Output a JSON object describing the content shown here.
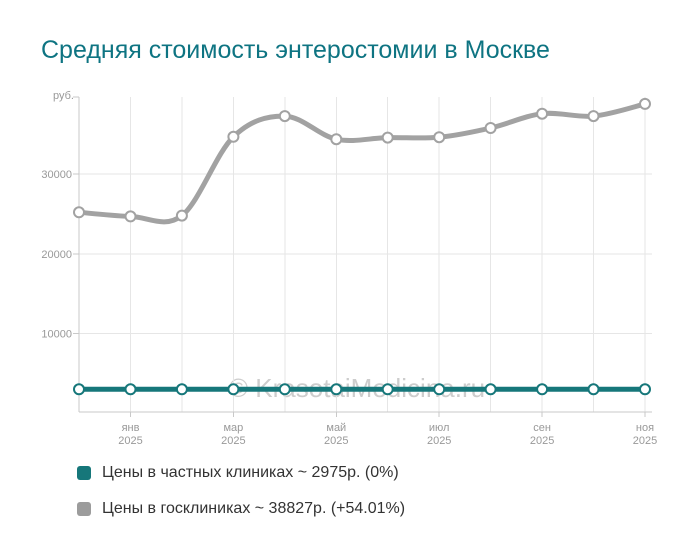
{
  "title": "Средняя стоимость энтеростомии в Москве",
  "watermark": "© KrasotaiMedicina.ru",
  "colors": {
    "title": "#0e7482",
    "private_series": "#16777a",
    "state_series": "#a2a2a2",
    "axis_line": "#c9c9c9",
    "grid_line": "#e6e6e6",
    "axis_label": "#999999",
    "legend_text": "#333333",
    "watermark_text": "#cdcdcd",
    "marker_fill": "#ffffff"
  },
  "chart_data": {
    "type": "line",
    "curve": "spline",
    "n_points": 12,
    "grid": true,
    "legend_position": "bottom-left",
    "y_axis": {
      "unit_label": "руб.",
      "min": 0,
      "max": 39700,
      "tick_values": [
        10000,
        20000,
        30000
      ],
      "tick_labels": [
        "10000",
        "20000",
        "30000"
      ]
    },
    "x_axis": {
      "tick_labels": [
        {
          "point_index": 1,
          "month": "янв",
          "year": "2025"
        },
        {
          "point_index": 3,
          "month": "мар",
          "year": "2025"
        },
        {
          "point_index": 5,
          "month": "май",
          "year": "2025"
        },
        {
          "point_index": 7,
          "month": "июл",
          "year": "2025"
        },
        {
          "point_index": 9,
          "month": "сен",
          "year": "2025"
        },
        {
          "point_index": 11,
          "month": "ноя",
          "year": "2025"
        }
      ]
    },
    "series": [
      {
        "name": "Цены в частных клиниках",
        "slug": "private-clinics",
        "color": "#16777a",
        "values": [
          2975,
          2975,
          2975,
          2975,
          2975,
          2975,
          2975,
          2975,
          2975,
          2975,
          2975,
          2975
        ]
      },
      {
        "name": "Цены в госклиниках",
        "slug": "state-clinics",
        "color": "#a2a2a2",
        "values": [
          25211,
          24700,
          24800,
          34700,
          37300,
          34400,
          34600,
          34650,
          35800,
          37600,
          37300,
          38827
        ]
      }
    ]
  },
  "legend": {
    "items": [
      {
        "label": "Цены в частных клиниках ~ 2975р. (0%)",
        "color": "#16777a"
      },
      {
        "label": "Цены в госклиниках ~ 38827р. (+54.01%)",
        "color": "#9c9c9c"
      }
    ]
  }
}
